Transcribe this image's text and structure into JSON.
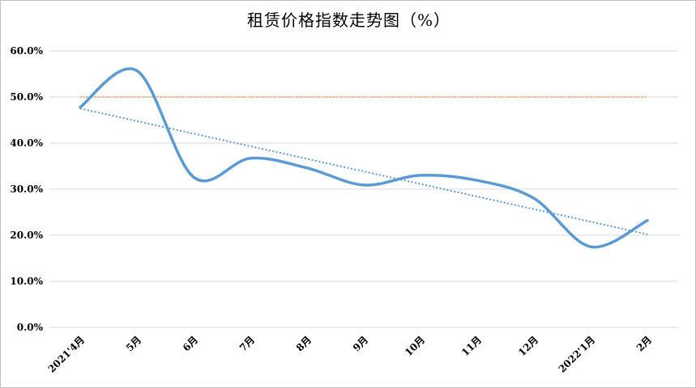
{
  "chart_data": {
    "type": "line",
    "title": "租赁价格指数走势图（%）",
    "categories": [
      "2021'4月",
      "5月",
      "6月",
      "7月",
      "8月",
      "9月",
      "10月",
      "11月",
      "12月",
      "2022'1月",
      "2月"
    ],
    "series": [
      {
        "values": [
          47.8,
          55.7,
          32.6,
          36.7,
          34.6,
          30.9,
          33.0,
          31.9,
          28.0,
          17.5,
          23.2
        ],
        "color": "#5b9bd5",
        "style": "smooth"
      }
    ],
    "reference_line": {
      "value": 50.0,
      "color": "#ed7d31",
      "style": "dotted"
    },
    "trendline": {
      "start": 47.5,
      "end": 20.2,
      "color": "#5b9bd5",
      "style": "dotted"
    },
    "y_ticks": [
      "0.0%",
      "10.0%",
      "20.0%",
      "30.0%",
      "40.0%",
      "50.0%",
      "60.0%"
    ],
    "ylim": [
      0,
      60
    ],
    "grid": true,
    "legend": "none"
  }
}
